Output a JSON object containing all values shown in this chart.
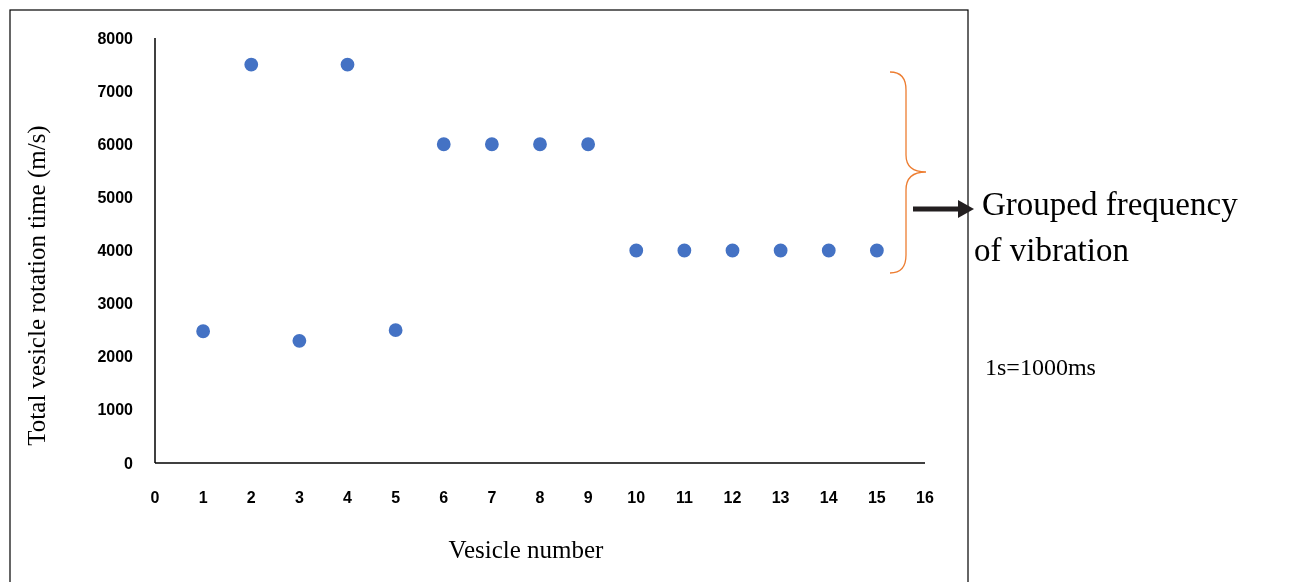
{
  "chart_data": {
    "type": "scatter",
    "xlabel": "Vesicle number",
    "ylabel": "Total vesicle rotation  time (m/s)",
    "x": [
      1,
      2,
      3,
      4,
      5,
      6,
      7,
      8,
      9,
      10,
      11,
      12,
      13,
      14,
      15
    ],
    "series": [
      {
        "color": "#4472c4",
        "values": [
          2480,
          7500,
          2300,
          7500,
          2500,
          6000,
          6000,
          6000,
          6000,
          4000,
          4000,
          4000,
          4000,
          4000,
          4000
        ]
      }
    ],
    "xlim": [
      0,
      16
    ],
    "xticks": [
      0,
      1,
      2,
      3,
      4,
      5,
      6,
      7,
      8,
      9,
      10,
      11,
      12,
      13,
      14,
      15,
      16
    ],
    "ylim": [
      0,
      8000
    ],
    "yticks": [
      0,
      1000,
      2000,
      3000,
      4000,
      5000,
      6000,
      7000,
      8000
    ],
    "marker": "circle",
    "annotations": [
      "Grouped frequency of vibration",
      "1s=1000ms"
    ]
  }
}
